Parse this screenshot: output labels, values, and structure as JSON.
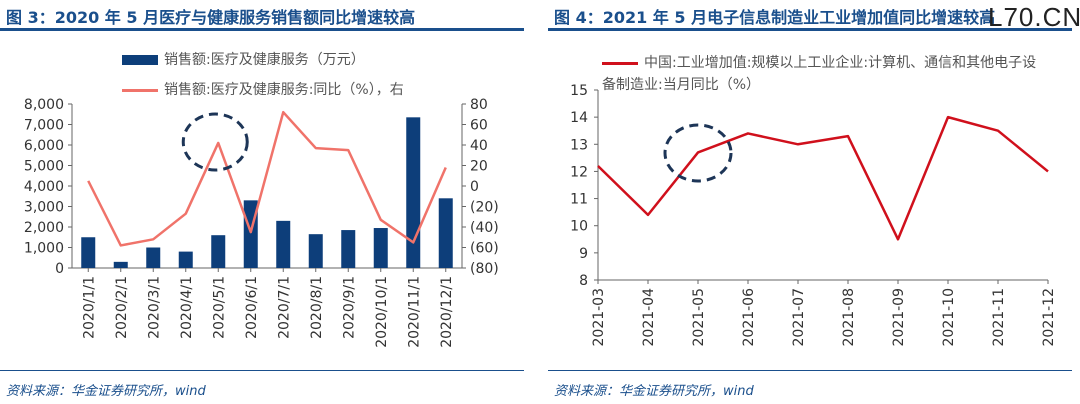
{
  "left": {
    "title": "图 3：2020 年 5 月医疗与健康服务销售额同比增速较高",
    "source": "资料来源：华金证券研究所，wind"
  },
  "right": {
    "title": "图 4：2021 年 5 月电子信息制造业工业增加值同比增速较高",
    "source": "资料来源：华金证券研究所，wind",
    "watermark": "L70.CN"
  },
  "chart_data": [
    {
      "type": "bar",
      "categories": [
        "2020/1/1",
        "2020/2/1",
        "2020/3/1",
        "2020/4/1",
        "2020/5/1",
        "2020/6/1",
        "2020/7/1",
        "2020/8/1",
        "2020/9/1",
        "2020/10/1",
        "2020/11/1",
        "2020/12/1"
      ],
      "series": [
        {
          "name": "销售额:医疗及健康服务（万元）",
          "type": "bar",
          "axis": "left",
          "color": "#0d3e7a",
          "values": [
            1500,
            300,
            1000,
            800,
            1600,
            3300,
            2300,
            1650,
            1850,
            1950,
            7350,
            3400
          ]
        },
        {
          "name": "销售额:医疗及健康服务:同比（%），右",
          "type": "line",
          "axis": "right",
          "color": "#f0736a",
          "values": [
            5,
            -58,
            -52,
            -27,
            42,
            -45,
            72,
            37,
            35,
            -33,
            -55,
            18
          ]
        }
      ],
      "ylim_left": [
        0,
        8000
      ],
      "yticks_left": [
        "0",
        "1,000",
        "2,000",
        "3,000",
        "4,000",
        "5,000",
        "6,000",
        "7,000",
        "8,000"
      ],
      "ylim_right": [
        -80,
        80
      ],
      "yticks_right": [
        "(80)",
        "(60)",
        "(40)",
        "(20)",
        "0",
        "20",
        "40",
        "60",
        "80"
      ],
      "annotation": "dashed circle around 2020/5/1 peak",
      "grid": false,
      "legend_position": "top"
    },
    {
      "type": "line",
      "categories": [
        "2021-03",
        "2021-04",
        "2021-05",
        "2021-06",
        "2021-07",
        "2021-08",
        "2021-09",
        "2021-10",
        "2021-11",
        "2021-12"
      ],
      "series": [
        {
          "name": "中国:工业增加值:规模以上工业企业:计算机、通信和其他电子设备制造业:当月同比（%）",
          "color": "#d0101c",
          "values": [
            12.2,
            10.4,
            12.7,
            13.4,
            13.0,
            13.3,
            9.5,
            14.0,
            13.5,
            12.0
          ]
        }
      ],
      "ylim": [
        8,
        15
      ],
      "yticks": [
        "8",
        "9",
        "10",
        "11",
        "12",
        "13",
        "14",
        "15"
      ],
      "annotation": "dashed circle around 2021-05",
      "grid": false,
      "legend_position": "top"
    }
  ]
}
